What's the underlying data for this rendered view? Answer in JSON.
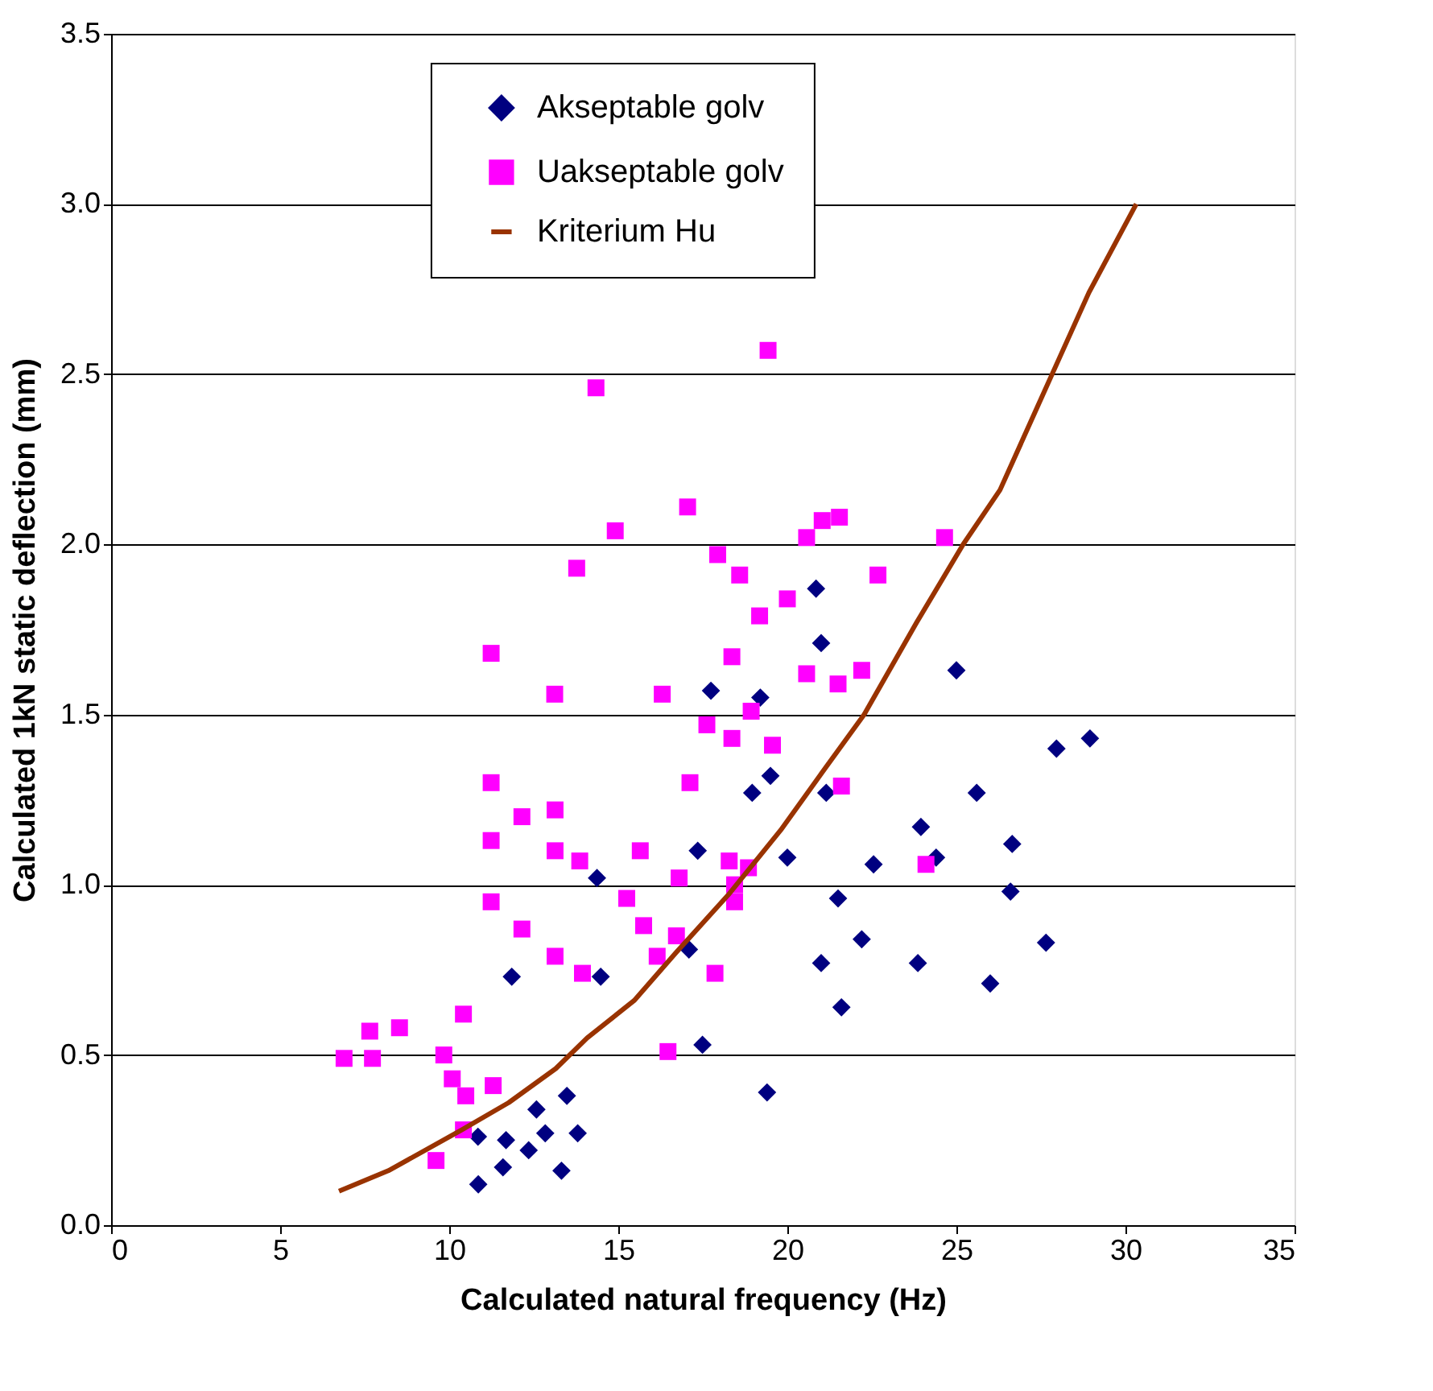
{
  "chart_data": {
    "type": "scatter",
    "xlabel": "Calculated natural frequency (Hz)",
    "ylabel": "Calculated 1kN static deflection (mm)",
    "xlim": [
      0,
      35
    ],
    "xticks": [
      0,
      5,
      10,
      15,
      20,
      25,
      30,
      35
    ],
    "ylim": [
      0,
      3.5
    ],
    "yticks": [
      {
        "value": 0,
        "label": "0.0"
      },
      0.5,
      {
        "value": 1,
        "label": "1.0"
      },
      1.5,
      {
        "value": 2,
        "label": "2.0"
      },
      2.5,
      {
        "value": 3,
        "label": "3.0"
      },
      3.5
    ],
    "grid": "y",
    "legend": "top",
    "series": [
      {
        "name": "Akseptable golv",
        "color": "#000080",
        "marker": "diamond",
        "x": [
          10.86,
          10.85,
          11.59,
          11.68,
          12.35,
          12.58,
          12.84,
          13.32,
          13.48,
          13.8,
          11.85,
          14.48,
          14.37,
          17.35,
          17.09,
          17.49,
          18.96,
          19.5,
          17.74,
          19.2,
          20.85,
          21.0,
          25.0,
          27.96,
          28.95,
          21.15,
          25.6,
          23.95,
          26.65,
          24.4,
          20.0,
          22.55,
          26.6,
          21.5,
          22.2,
          27.65,
          21.0,
          23.86,
          26.0,
          21.6,
          19.4
        ],
        "values": [
          0.12,
          0.26,
          0.17,
          0.25,
          0.22,
          0.34,
          0.27,
          0.16,
          0.38,
          0.27,
          0.73,
          0.73,
          1.02,
          1.1,
          0.81,
          0.53,
          1.27,
          1.32,
          1.57,
          1.55,
          1.87,
          1.71,
          1.63,
          1.4,
          1.43,
          1.27,
          1.27,
          1.17,
          1.12,
          1.08,
          1.08,
          1.06,
          0.98,
          0.96,
          0.84,
          0.83,
          0.77,
          0.77,
          0.71,
          0.64,
          0.39
        ]
      },
      {
        "name": "Uakseptable golv",
        "color": "#ff00ff",
        "marker": "square",
        "x": [
          6.89,
          7.65,
          7.73,
          8.53,
          10.42,
          9.84,
          10.09,
          10.49,
          11.3,
          10.42,
          9.61,
          11.24,
          11.24,
          11.24,
          12.15,
          12.15,
          13.13,
          13.13,
          13.13,
          13.86,
          13.94,
          15.25,
          15.65,
          15.75,
          16.15,
          16.72,
          16.8,
          17.12,
          17.86,
          16.47,
          18.28,
          18.44,
          18.44,
          18.85,
          18.36,
          19.56,
          19.43,
          14.34,
          17.05,
          14.91,
          13.77,
          17.94,
          18.59,
          19.18,
          11.24,
          18.36,
          13.12,
          16.3,
          17.62,
          18.93,
          21.03,
          21.54,
          20.57,
          24.65,
          22.68,
          20.0,
          20.57,
          21.5,
          22.2,
          21.6,
          24.1
        ],
        "values": [
          0.49,
          0.57,
          0.49,
          0.58,
          0.62,
          0.5,
          0.43,
          0.38,
          0.41,
          0.28,
          0.19,
          1.3,
          1.13,
          0.95,
          1.2,
          0.87,
          1.22,
          1.1,
          0.79,
          1.07,
          0.74,
          0.96,
          1.1,
          0.88,
          0.79,
          0.85,
          1.02,
          1.3,
          0.74,
          0.51,
          1.07,
          1.0,
          0.95,
          1.05,
          1.43,
          1.41,
          2.57,
          2.46,
          2.11,
          2.04,
          1.93,
          1.97,
          1.91,
          1.79,
          1.68,
          1.67,
          1.56,
          1.56,
          1.47,
          1.51,
          2.07,
          2.08,
          2.02,
          2.02,
          1.91,
          1.84,
          1.62,
          1.59,
          1.63,
          1.29,
          1.06
        ]
      },
      {
        "name": "Kriterium Hu",
        "color": "#993300",
        "type": "line",
        "marker": "none",
        "line_style": "solid",
        "x": [
          6.74,
          8.2,
          10.37,
          11.76,
          13.15,
          14.08,
          15.47,
          16.7,
          18.25,
          19.8,
          21.03,
          22.27,
          23.82,
          25.2,
          26.29,
          27.83,
          28.92,
          30.32
        ],
        "values": [
          0.1,
          0.16,
          0.28,
          0.36,
          0.46,
          0.55,
          0.66,
          0.8,
          0.97,
          1.16,
          1.33,
          1.5,
          1.77,
          2.0,
          2.16,
          2.5,
          2.74,
          3.0
        ]
      }
    ]
  }
}
